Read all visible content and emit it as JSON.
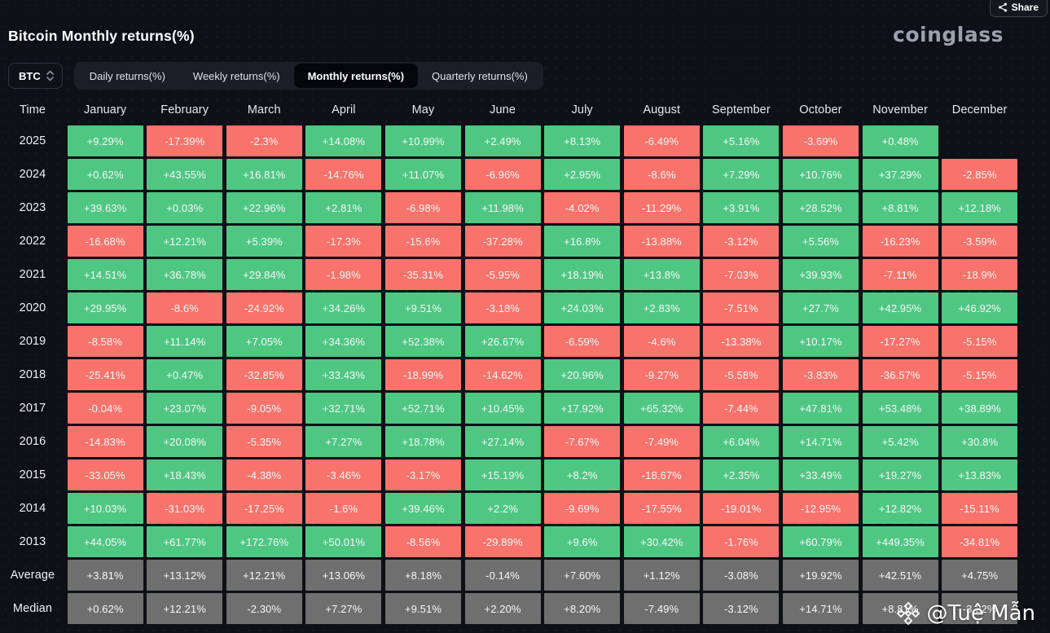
{
  "header": {
    "title": "Bitcoin Monthly returns(%)",
    "logo_text": "coinglass",
    "share_label": "Share"
  },
  "toolbar": {
    "symbol_selector": {
      "value": "BTC"
    },
    "tabs": [
      {
        "id": "daily",
        "label": "Daily returns(%)",
        "active": false
      },
      {
        "id": "weekly",
        "label": "Weekly returns(%)",
        "active": false
      },
      {
        "id": "monthly",
        "label": "Monthly returns(%)",
        "active": true
      },
      {
        "id": "quarterly",
        "label": "Quarterly returns(%)",
        "active": false
      }
    ]
  },
  "watermark": {
    "handle": "@Tuệ Mẫn"
  },
  "chart_data": {
    "type": "heatmap",
    "title": "Bitcoin Monthly returns(%)",
    "time_label": "Time",
    "columns": [
      "January",
      "February",
      "March",
      "April",
      "May",
      "June",
      "July",
      "August",
      "September",
      "October",
      "November",
      "December"
    ],
    "colors": {
      "positive": "#4fc783",
      "negative": "#f7736b",
      "summary": "#6f6f6f",
      "background": "#0d1017"
    },
    "rows": [
      {
        "label": "2025",
        "values": [
          "+9.29%",
          "-17.39%",
          "-2.3%",
          "+14.08%",
          "+10.99%",
          "+2.49%",
          "+8.13%",
          "-6.49%",
          "+5.16%",
          "-3.69%",
          "+0.48%",
          null
        ]
      },
      {
        "label": "2024",
        "values": [
          "+0.62%",
          "+43.55%",
          "+16.81%",
          "-14.76%",
          "+11.07%",
          "-6.96%",
          "+2.95%",
          "-8.6%",
          "+7.29%",
          "+10.76%",
          "+37.29%",
          "-2.85%"
        ]
      },
      {
        "label": "2023",
        "values": [
          "+39.63%",
          "+0.03%",
          "+22.96%",
          "+2.81%",
          "-6.98%",
          "+11.98%",
          "-4.02%",
          "-11.29%",
          "+3.91%",
          "+28.52%",
          "+8.81%",
          "+12.18%"
        ]
      },
      {
        "label": "2022",
        "values": [
          "-16.68%",
          "+12.21%",
          "+5.39%",
          "-17.3%",
          "-15.6%",
          "-37.28%",
          "+16.8%",
          "-13.88%",
          "-3.12%",
          "+5.56%",
          "-16.23%",
          "-3.59%"
        ]
      },
      {
        "label": "2021",
        "values": [
          "+14.51%",
          "+36.78%",
          "+29.84%",
          "-1.98%",
          "-35.31%",
          "-5.95%",
          "+18.19%",
          "+13.8%",
          "-7.03%",
          "+39.93%",
          "-7.11%",
          "-18.9%"
        ]
      },
      {
        "label": "2020",
        "values": [
          "+29.95%",
          "-8.6%",
          "-24.92%",
          "+34.26%",
          "+9.51%",
          "-3.18%",
          "+24.03%",
          "+2.83%",
          "-7.51%",
          "+27.7%",
          "+42.95%",
          "+46.92%"
        ]
      },
      {
        "label": "2019",
        "values": [
          "-8.58%",
          "+11.14%",
          "+7.05%",
          "+34.36%",
          "+52.38%",
          "+26.67%",
          "-6.59%",
          "-4.6%",
          "-13.38%",
          "+10.17%",
          "-17.27%",
          "-5.15%"
        ]
      },
      {
        "label": "2018",
        "values": [
          "-25.41%",
          "+0.47%",
          "-32.85%",
          "+33.43%",
          "-18.99%",
          "-14.62%",
          "+20.96%",
          "-9.27%",
          "-5.58%",
          "-3.83%",
          "-36.57%",
          "-5.15%"
        ]
      },
      {
        "label": "2017",
        "values": [
          "-0.04%",
          "+23.07%",
          "-9.05%",
          "+32.71%",
          "+52.71%",
          "+10.45%",
          "+17.92%",
          "+65.32%",
          "-7.44%",
          "+47.81%",
          "+53.48%",
          "+38.89%"
        ]
      },
      {
        "label": "2016",
        "values": [
          "-14.83%",
          "+20.08%",
          "-5.35%",
          "+7.27%",
          "+18.78%",
          "+27.14%",
          "-7.67%",
          "-7.49%",
          "+6.04%",
          "+14.71%",
          "+5.42%",
          "+30.8%"
        ]
      },
      {
        "label": "2015",
        "values": [
          "-33.05%",
          "+18.43%",
          "-4.38%",
          "-3.46%",
          "-3.17%",
          "+15.19%",
          "+8.2%",
          "-18.67%",
          "+2.35%",
          "+33.49%",
          "+19.27%",
          "+13.83%"
        ]
      },
      {
        "label": "2014",
        "values": [
          "+10.03%",
          "-31.03%",
          "-17.25%",
          "-1.6%",
          "+39.46%",
          "+2.2%",
          "-9.69%",
          "-17.55%",
          "-19.01%",
          "-12.95%",
          "+12.82%",
          "-15.11%"
        ]
      },
      {
        "label": "2013",
        "values": [
          "+44.05%",
          "+61.77%",
          "+172.76%",
          "+50.01%",
          "-8.56%",
          "-29.89%",
          "+9.6%",
          "+30.42%",
          "-1.76%",
          "+60.79%",
          "+449.35%",
          "-34.81%"
        ]
      },
      {
        "label": "Average",
        "summary": true,
        "values": [
          "+3.81%",
          "+13.12%",
          "+12.21%",
          "+13.06%",
          "+8.18%",
          "-0.14%",
          "+7.60%",
          "+1.12%",
          "-3.08%",
          "+19.92%",
          "+42.51%",
          "+4.75%"
        ]
      },
      {
        "label": "Median",
        "summary": true,
        "values": [
          "+0.62%",
          "+12.21%",
          "-2.30%",
          "+7.27%",
          "+9.51%",
          "+2.20%",
          "+8.20%",
          "-7.49%",
          "-3.12%",
          "+14.71%",
          "+8.81%",
          "-3.22%"
        ]
      }
    ]
  }
}
